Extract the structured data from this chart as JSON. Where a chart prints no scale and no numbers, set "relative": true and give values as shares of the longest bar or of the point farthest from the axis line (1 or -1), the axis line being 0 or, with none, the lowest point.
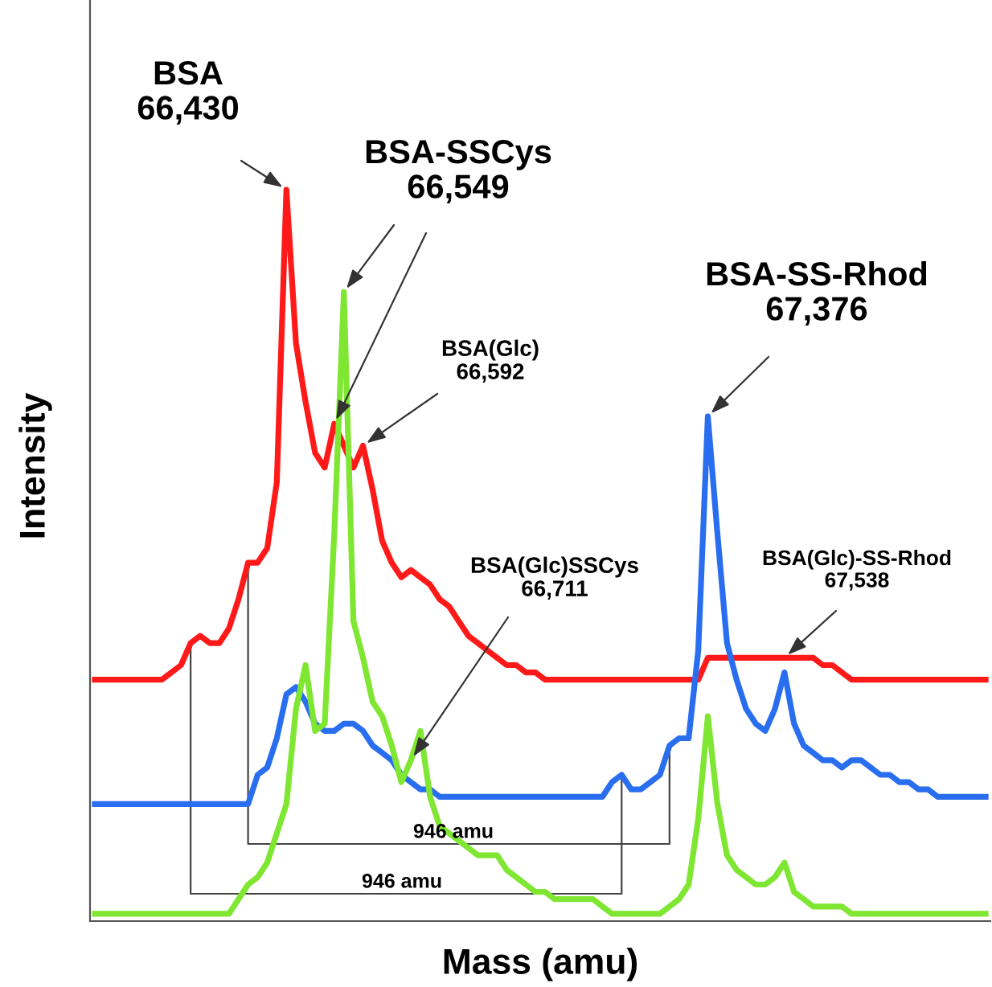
{
  "chart_data": {
    "type": "line",
    "relative": true,
    "xlabel": "Mass (amu)",
    "ylabel": "Intensity",
    "categories": [
      null,
      null,
      null,
      null,
      null,
      null,
      null,
      null,
      null,
      null,
      null,
      null,
      null,
      null,
      null,
      null,
      null,
      null,
      null,
      null,
      null,
      null,
      null,
      null,
      null,
      null,
      null,
      null,
      null,
      null,
      null,
      null,
      null,
      null,
      null,
      null,
      null,
      null,
      null,
      null,
      null,
      null,
      null,
      null,
      null,
      null,
      null,
      null,
      null,
      null,
      null,
      null,
      null,
      null,
      null,
      null,
      null,
      null,
      null,
      null,
      null,
      null,
      null,
      null,
      null,
      null,
      null,
      null,
      null,
      null,
      null,
      null,
      null,
      null,
      null,
      null,
      null,
      null,
      null,
      null,
      null,
      null,
      null,
      null,
      null,
      null,
      null,
      null,
      null,
      null,
      null,
      null,
      null,
      null
    ],
    "series": [
      {
        "color": "#ff1a1a",
        "values": [
          0.33,
          0.33,
          0.33,
          0.33,
          0.33,
          0.33,
          0.33,
          0.33,
          0.34,
          0.35,
          0.38,
          0.39,
          0.38,
          0.38,
          0.4,
          0.44,
          0.49,
          0.49,
          0.51,
          0.6,
          1.0,
          0.79,
          0.71,
          0.64,
          0.62,
          0.68,
          0.65,
          0.62,
          0.65,
          0.59,
          0.52,
          0.49,
          0.47,
          0.48,
          0.47,
          0.46,
          0.44,
          0.43,
          0.41,
          0.39,
          0.38,
          0.37,
          0.36,
          0.35,
          0.35,
          0.34,
          0.34,
          0.33,
          0.33,
          0.33,
          0.33,
          0.33,
          0.33,
          0.33,
          0.33,
          0.33,
          0.33,
          0.33,
          0.33,
          0.33,
          0.33,
          0.33,
          0.33,
          0.33,
          0.36,
          0.36,
          0.36,
          0.36,
          0.36,
          0.36,
          0.36,
          0.36,
          0.36,
          0.36,
          0.36,
          0.36,
          0.35,
          0.35,
          0.34,
          0.33,
          0.33,
          0.33,
          0.33,
          0.33,
          0.33,
          0.33,
          0.33,
          0.33,
          0.33,
          0.33,
          0.33,
          0.33,
          0.33,
          0.33
        ]
      },
      {
        "color": "#2a6ef0",
        "values": [
          0.16,
          0.16,
          0.16,
          0.16,
          0.16,
          0.16,
          0.16,
          0.16,
          0.16,
          0.16,
          0.16,
          0.16,
          0.16,
          0.16,
          0.16,
          0.16,
          0.16,
          0.2,
          0.21,
          0.25,
          0.31,
          0.32,
          0.3,
          0.27,
          0.26,
          0.26,
          0.27,
          0.27,
          0.26,
          0.24,
          0.23,
          0.22,
          0.2,
          0.19,
          0.18,
          0.18,
          0.17,
          0.17,
          0.17,
          0.17,
          0.17,
          0.17,
          0.17,
          0.17,
          0.17,
          0.17,
          0.17,
          0.17,
          0.17,
          0.17,
          0.17,
          0.17,
          0.17,
          0.17,
          0.19,
          0.2,
          0.18,
          0.18,
          0.19,
          0.2,
          0.24,
          0.25,
          0.25,
          0.37,
          0.69,
          0.53,
          0.38,
          0.33,
          0.29,
          0.27,
          0.26,
          0.29,
          0.34,
          0.27,
          0.24,
          0.23,
          0.22,
          0.22,
          0.21,
          0.22,
          0.22,
          0.21,
          0.2,
          0.2,
          0.19,
          0.19,
          0.18,
          0.18,
          0.17,
          0.17,
          0.17,
          0.17,
          0.17,
          0.17
        ]
      },
      {
        "color": "#7fe632",
        "values": [
          0.01,
          0.01,
          0.01,
          0.01,
          0.01,
          0.01,
          0.01,
          0.01,
          0.01,
          0.01,
          0.01,
          0.01,
          0.01,
          0.01,
          0.01,
          0.03,
          0.05,
          0.06,
          0.08,
          0.12,
          0.16,
          0.29,
          0.35,
          0.26,
          0.27,
          0.53,
          0.86,
          0.41,
          0.36,
          0.3,
          0.28,
          0.24,
          0.19,
          0.22,
          0.26,
          0.17,
          0.13,
          0.12,
          0.11,
          0.1,
          0.09,
          0.09,
          0.09,
          0.07,
          0.06,
          0.05,
          0.04,
          0.04,
          0.03,
          0.03,
          0.03,
          0.03,
          0.03,
          0.02,
          0.01,
          0.01,
          0.01,
          0.01,
          0.01,
          0.01,
          0.02,
          0.03,
          0.05,
          0.14,
          0.28,
          0.16,
          0.09,
          0.07,
          0.06,
          0.05,
          0.05,
          0.06,
          0.08,
          0.04,
          0.03,
          0.02,
          0.02,
          0.02,
          0.02,
          0.01,
          0.01,
          0.01,
          0.01,
          0.01,
          0.01,
          0.01,
          0.01,
          0.01,
          0.01,
          0.01,
          0.01,
          0.01,
          0.01,
          0.01
        ]
      }
    ],
    "annotations": [
      "BSA\n66,430",
      "BSA-SSCys\n66,549",
      "BSA(Glc)\n66,592",
      "BSA(Glc)SSCys\n66,711",
      "BSA-SS-Rhod\n67,376",
      "BSA(Glc)-SS-Rhod\n67,538",
      "946 amu",
      "946 amu"
    ]
  }
}
